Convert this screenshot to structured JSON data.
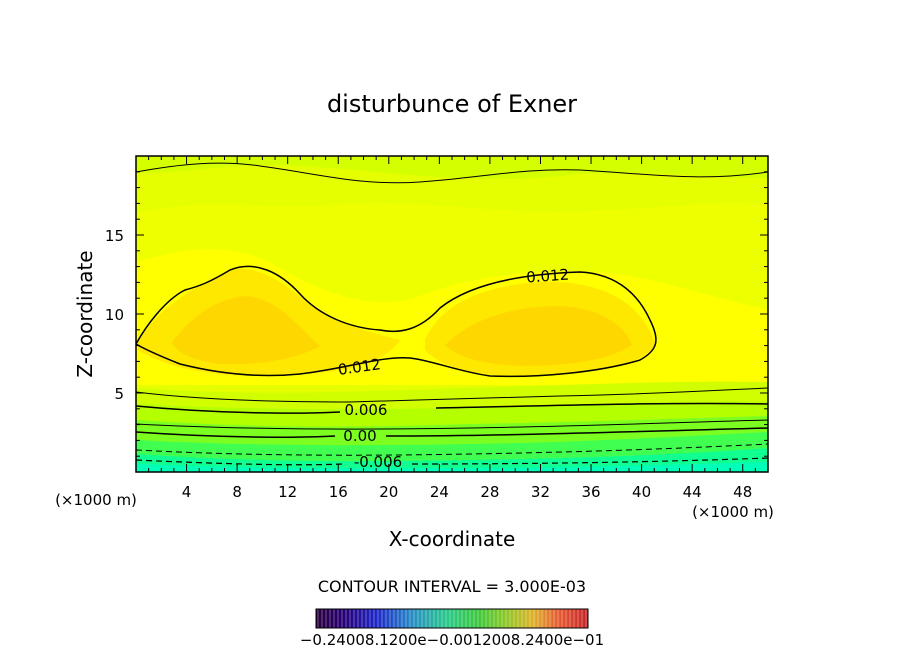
{
  "chart_data": {
    "type": "contour",
    "title": "disturbunce of Exner",
    "xlabel": "X-coordinate",
    "ylabel": "Z-coordinate",
    "x_unit": "(×1000 m)",
    "y_unit": "(×1000 m)",
    "xlim": [
      0,
      50
    ],
    "ylim": [
      0,
      20
    ],
    "x_ticks": [
      4,
      8,
      12,
      16,
      20,
      24,
      28,
      32,
      36,
      40,
      44,
      48
    ],
    "y_ticks": [
      5,
      10,
      15
    ],
    "contour_interval_text": "CONTOUR INTERVAL = 3.000E-03",
    "contour_labels": [
      {
        "text": "0.012",
        "x": 33,
        "z": 12.4
      },
      {
        "text": "0.012",
        "x": 17.5,
        "z": 6.8
      },
      {
        "text": "0.006",
        "x": 18,
        "z": 4.0
      },
      {
        "text": "0.00",
        "x": 17.5,
        "z": 2.3
      },
      {
        "text": "-0.006",
        "x": 19.5,
        "z": 0.7
      }
    ],
    "colorbar_labels_text": "−0.24008.1200e−0.0012008.2400e−01",
    "colors": {
      "band_top": "#d9ff00",
      "band_upper": "#ecff00",
      "band_mid": "#ffff00",
      "band_core": "#ffe600",
      "band_core2": "#ffd700",
      "band_low1": "#c8ff00",
      "band_low2": "#a0ff10",
      "band_low3": "#60ff30",
      "band_low4": "#20ff70",
      "band_bottom": "#00ffb0"
    }
  }
}
